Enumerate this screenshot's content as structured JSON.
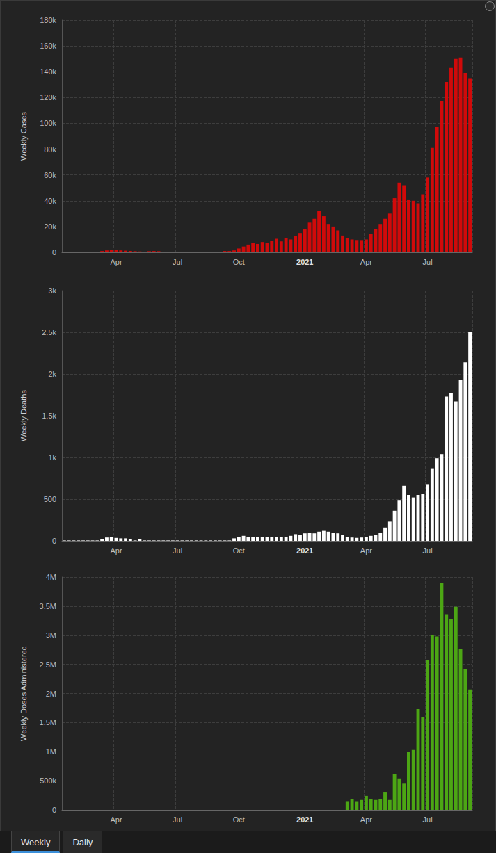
{
  "chart_data": [
    {
      "type": "bar",
      "ylabel": "Weekly Cases",
      "color": "#d10a0a",
      "grid": true,
      "categories": [
        null,
        null,
        null,
        null,
        null,
        null,
        null,
        null,
        null,
        null,
        null,
        "Apr",
        null,
        null,
        null,
        null,
        null,
        null,
        null,
        null,
        null,
        null,
        null,
        null,
        "Jul",
        null,
        null,
        null,
        null,
        null,
        null,
        null,
        null,
        null,
        null,
        null,
        null,
        "Oct",
        null,
        null,
        null,
        null,
        null,
        null,
        null,
        null,
        null,
        null,
        null,
        null,
        null,
        "2021",
        null,
        null,
        null,
        null,
        null,
        null,
        null,
        null,
        null,
        null,
        null,
        null,
        "Apr",
        null,
        null,
        null,
        null,
        null,
        null,
        null,
        null,
        null,
        null,
        null,
        null,
        "Jul",
        null,
        null,
        null,
        null,
        null,
        null,
        null,
        null,
        null
      ],
      "values": [
        0,
        0,
        0,
        0,
        0,
        0,
        0,
        0,
        1000,
        1500,
        1800,
        1700,
        1500,
        1300,
        1100,
        900,
        700,
        0,
        900,
        1000,
        900,
        0,
        0,
        0,
        0,
        0,
        0,
        0,
        0,
        0,
        0,
        0,
        0,
        0,
        1000,
        1000,
        1500,
        3000,
        4500,
        6000,
        7000,
        6500,
        8000,
        7500,
        9000,
        10500,
        8500,
        11000,
        10000,
        12500,
        15000,
        18000,
        23000,
        26000,
        32000,
        28000,
        22000,
        20000,
        17000,
        13000,
        11000,
        10000,
        9500,
        9500,
        10000,
        14000,
        18000,
        22000,
        26000,
        30000,
        42000,
        54000,
        52000,
        41000,
        40000,
        38000,
        45000,
        58000,
        81000,
        97000,
        117000,
        132000,
        143000,
        150000,
        151000,
        139000,
        135000
      ],
      "ylim": [
        0,
        180000
      ],
      "yticks": [
        0,
        {
          "value": 20000,
          "label": "20k"
        },
        {
          "value": 40000,
          "label": "40k"
        },
        {
          "value": 60000,
          "label": "60k"
        },
        {
          "value": 80000,
          "label": "80k"
        },
        {
          "value": 100000,
          "label": "100k"
        },
        {
          "value": 120000,
          "label": "120k"
        },
        {
          "value": 140000,
          "label": "140k"
        },
        {
          "value": 160000,
          "label": "160k"
        },
        {
          "value": 180000,
          "label": "180k"
        }
      ]
    },
    {
      "type": "bar",
      "ylabel": "Weekly Deaths",
      "color": "#ffffff",
      "grid": true,
      "categories": [
        null,
        null,
        null,
        null,
        null,
        null,
        null,
        null,
        null,
        null,
        null,
        "Apr",
        null,
        null,
        null,
        null,
        null,
        null,
        null,
        null,
        null,
        null,
        null,
        null,
        "Jul",
        null,
        null,
        null,
        null,
        null,
        null,
        null,
        null,
        null,
        null,
        null,
        null,
        "Oct",
        null,
        null,
        null,
        null,
        null,
        null,
        null,
        null,
        null,
        null,
        null,
        null,
        null,
        "2021",
        null,
        null,
        null,
        null,
        null,
        null,
        null,
        null,
        null,
        null,
        null,
        null,
        "Apr",
        null,
        null,
        null,
        null,
        null,
        null,
        null,
        null,
        null,
        null,
        null,
        null,
        "Jul",
        null,
        null,
        null,
        null,
        null,
        null,
        null,
        null,
        null
      ],
      "values": [
        5,
        5,
        5,
        5,
        5,
        5,
        5,
        5,
        20,
        40,
        45,
        35,
        30,
        30,
        25,
        5,
        25,
        5,
        5,
        5,
        5,
        5,
        5,
        5,
        5,
        5,
        5,
        5,
        5,
        5,
        5,
        5,
        5,
        5,
        5,
        5,
        30,
        50,
        60,
        45,
        50,
        45,
        45,
        45,
        50,
        45,
        50,
        45,
        60,
        80,
        70,
        90,
        100,
        90,
        110,
        120,
        110,
        100,
        90,
        70,
        50,
        40,
        35,
        40,
        50,
        60,
        70,
        100,
        160,
        230,
        360,
        490,
        660,
        550,
        520,
        550,
        560,
        680,
        870,
        990,
        1040,
        1730,
        1770,
        1670,
        1930,
        2140,
        2500
      ],
      "ylim": [
        0,
        3000
      ],
      "yticks": [
        0,
        500,
        {
          "value": 1000,
          "label": "1k"
        },
        {
          "value": 1500,
          "label": "1.5k"
        },
        {
          "value": 2000,
          "label": "2k"
        },
        {
          "value": 2500,
          "label": "2.5k"
        },
        {
          "value": 3000,
          "label": "3k"
        }
      ]
    },
    {
      "type": "bar",
      "ylabel": "Weekly Doses Administered",
      "color": "#4ca614",
      "grid": true,
      "categories": [
        null,
        null,
        null,
        null,
        null,
        null,
        null,
        null,
        null,
        null,
        null,
        "Apr",
        null,
        null,
        null,
        null,
        null,
        null,
        null,
        null,
        null,
        null,
        null,
        null,
        "Jul",
        null,
        null,
        null,
        null,
        null,
        null,
        null,
        null,
        null,
        null,
        null,
        null,
        "Oct",
        null,
        null,
        null,
        null,
        null,
        null,
        null,
        null,
        null,
        null,
        null,
        null,
        null,
        "2021",
        null,
        null,
        null,
        null,
        null,
        null,
        null,
        null,
        null,
        null,
        null,
        null,
        "Apr",
        null,
        null,
        null,
        null,
        null,
        null,
        null,
        null,
        null,
        null,
        null,
        null,
        "Jul",
        null,
        null,
        null,
        null,
        null,
        null,
        null,
        null,
        null
      ],
      "values": [
        0,
        0,
        0,
        0,
        0,
        0,
        0,
        0,
        0,
        0,
        0,
        0,
        0,
        0,
        0,
        0,
        0,
        0,
        0,
        0,
        0,
        0,
        0,
        0,
        0,
        0,
        0,
        0,
        0,
        0,
        0,
        0,
        0,
        0,
        0,
        0,
        0,
        0,
        0,
        0,
        0,
        0,
        0,
        0,
        0,
        0,
        0,
        0,
        0,
        0,
        0,
        0,
        0,
        0,
        0,
        0,
        0,
        0,
        0,
        0,
        150000,
        180000,
        150000,
        170000,
        240000,
        180000,
        170000,
        190000,
        310000,
        170000,
        620000,
        540000,
        450000,
        1000000,
        1030000,
        1730000,
        1600000,
        2580000,
        3000000,
        2980000,
        3900000,
        3360000,
        3280000,
        3490000,
        2770000,
        2420000,
        2070000
      ],
      "ylim": [
        0,
        4000000
      ],
      "yticks": [
        0,
        {
          "value": 500000,
          "label": "500k"
        },
        {
          "value": 1000000,
          "label": "1M"
        },
        {
          "value": 1500000,
          "label": "1.5M"
        },
        {
          "value": 2000000,
          "label": "2M"
        },
        {
          "value": 2500000,
          "label": "2.5M"
        },
        {
          "value": 3000000,
          "label": "3M"
        },
        {
          "value": 3500000,
          "label": "3.5M"
        },
        {
          "value": 4000000,
          "label": "4M"
        }
      ]
    }
  ],
  "tabs": {
    "items": [
      "Weekly",
      "Daily"
    ],
    "selected": "Weekly"
  }
}
